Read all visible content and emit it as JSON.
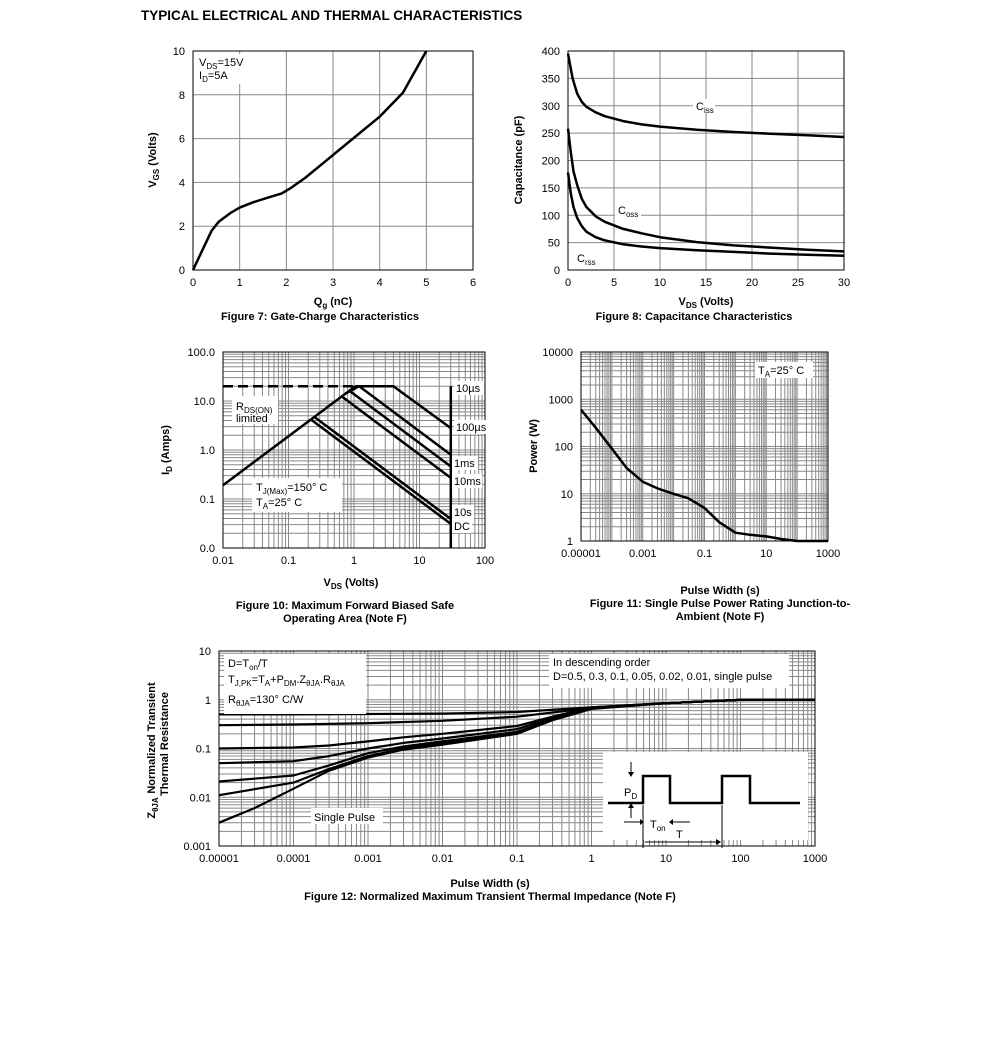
{
  "page": {
    "header": "TYPICAL ELECTRICAL AND THERMAL CHARACTERISTICS"
  },
  "chart_data": [
    {
      "id": "fig7",
      "type": "line",
      "caption": "Figure 7: Gate-Charge Characteristics",
      "xlabel": "Q",
      "xlabel_sub": "g",
      "xlabel_tail": " (nC)",
      "ylabel": "V",
      "ylabel_sub": "GS",
      "ylabel_tail": " (Volts)",
      "xlim": [
        0,
        6
      ],
      "ylim": [
        0,
        10
      ],
      "xticks": [
        0,
        1,
        2,
        3,
        4,
        5,
        6
      ],
      "xtick_labels": [
        "0",
        "1",
        "2",
        "3",
        "4",
        "5",
        "6"
      ],
      "yticks": [
        0,
        2,
        4,
        6,
        8,
        10
      ],
      "ytick_labels": [
        "0",
        "2",
        "4",
        "6",
        "8",
        "10"
      ],
      "annotations": [
        {
          "id": "vds",
          "parts": [
            [
              "V",
              ""
            ],
            [
              "DS",
              "sub"
            ],
            [
              "=15V",
              ""
            ]
          ]
        },
        {
          "id": "id",
          "parts": [
            [
              "I",
              ""
            ],
            [
              "D",
              "sub"
            ],
            [
              "=5A",
              ""
            ]
          ]
        }
      ],
      "series": [
        {
          "x": [
            0,
            0.2,
            0.4,
            0.55,
            0.8,
            1.0,
            1.3,
            1.6,
            1.9,
            2.1,
            2.4,
            2.8,
            3.2,
            3.6,
            4.0,
            4.5,
            5.0
          ],
          "y": [
            0,
            0.9,
            1.8,
            2.2,
            2.6,
            2.85,
            3.1,
            3.3,
            3.5,
            3.75,
            4.2,
            4.9,
            5.6,
            6.3,
            7.0,
            8.1,
            10.0
          ]
        }
      ]
    },
    {
      "id": "fig8",
      "type": "line",
      "caption": "Figure 8: Capacitance Characteristics",
      "xlabel": "V",
      "xlabel_sub": "DS",
      "xlabel_tail": " (Volts)",
      "ylabel": "Capacitance (pF)",
      "xlim": [
        0,
        30
      ],
      "ylim": [
        0,
        400
      ],
      "xticks": [
        0,
        5,
        10,
        15,
        20,
        25,
        30
      ],
      "xtick_labels": [
        "0",
        "5",
        "10",
        "15",
        "20",
        "25",
        "30"
      ],
      "yticks": [
        0,
        50,
        100,
        150,
        200,
        250,
        300,
        350,
        400
      ],
      "ytick_labels": [
        "0",
        "50",
        "100",
        "150",
        "200",
        "250",
        "300",
        "350",
        "400"
      ],
      "series": [
        {
          "name": "Ciss",
          "label": [
            "C",
            "iss"
          ],
          "x": [
            0,
            0.5,
            1,
            1.5,
            2,
            3,
            4,
            6,
            8,
            10,
            14,
            18,
            22,
            26,
            30
          ],
          "y": [
            395,
            350,
            322,
            307,
            298,
            288,
            281,
            272,
            266,
            262,
            256,
            252,
            249,
            246,
            243
          ]
        },
        {
          "name": "Coss",
          "label": [
            "C",
            "oss"
          ],
          "x": [
            0,
            0.3,
            0.6,
            1,
            1.5,
            2,
            3,
            4,
            6,
            8,
            10,
            14,
            18,
            22,
            26,
            30
          ],
          "y": [
            258,
            215,
            180,
            155,
            130,
            115,
            98,
            88,
            75,
            67,
            60,
            51,
            45,
            41,
            37,
            34
          ]
        },
        {
          "name": "Crss",
          "label": [
            "C",
            "rss"
          ],
          "x": [
            0,
            0.3,
            0.6,
            1,
            1.5,
            2,
            3,
            4,
            6,
            8,
            10,
            14,
            18,
            22,
            26,
            30
          ],
          "y": [
            178,
            140,
            115,
            95,
            80,
            70,
            60,
            54,
            47,
            43,
            40,
            36,
            33,
            30,
            28,
            26
          ]
        }
      ]
    },
    {
      "id": "fig10",
      "type": "line",
      "caption": "Figure 10: Maximum Forward Biased Safe",
      "caption2": "Operating Area (Note F)",
      "xlabel": "V",
      "xlabel_sub": "DS",
      "xlabel_tail": " (Volts)",
      "ylabel": "I",
      "ylabel_sub": "D",
      "ylabel_tail": " (Amps)",
      "xscale": "log",
      "yscale": "log",
      "xlim": [
        0.01,
        100
      ],
      "ylim": [
        0.01,
        100
      ],
      "xticks": [
        0.01,
        0.1,
        1,
        10,
        100
      ],
      "xtick_labels": [
        "0.01",
        "0.1",
        "1",
        "10",
        "100"
      ],
      "yticks": [
        0.01,
        0.1,
        1,
        10,
        100
      ],
      "ytick_labels": [
        "0.0",
        "0.1",
        "1.0",
        "10.0",
        "100.0"
      ],
      "annotations": [
        {
          "id": "rds",
          "parts": [
            [
              "R",
              ""
            ],
            [
              "DS(ON)",
              "sub"
            ]
          ],
          "line2": "limited"
        },
        {
          "id": "tj",
          "parts": [
            [
              "T",
              ""
            ],
            [
              "J(Max)",
              "sub"
            ],
            [
              "=150° C",
              ""
            ]
          ]
        },
        {
          "id": "ta",
          "parts": [
            [
              "T",
              ""
            ],
            [
              "A",
              "sub"
            ],
            [
              "=25° C",
              ""
            ]
          ]
        },
        {
          "id": "l10us",
          "parts": [
            [
              "10µs",
              ""
            ]
          ]
        },
        {
          "id": "l100us",
          "parts": [
            [
              "100µs",
              ""
            ]
          ]
        },
        {
          "id": "l1ms",
          "parts": [
            [
              "1ms",
              ""
            ]
          ]
        },
        {
          "id": "l10ms",
          "parts": [
            [
              "10ms",
              ""
            ]
          ]
        },
        {
          "id": "l10s",
          "parts": [
            [
              "10s",
              ""
            ]
          ]
        },
        {
          "id": "ldc",
          "parts": [
            [
              "DC",
              ""
            ]
          ]
        }
      ],
      "series": [
        {
          "name": "RDS(ON) limited",
          "dashed": true,
          "x": [
            0.01,
            1.05
          ],
          "y": [
            20,
            20
          ]
        },
        {
          "name": "RDS(ON) limit",
          "x": [
            0.01,
            1.05
          ],
          "y": [
            0.19,
            20
          ]
        },
        {
          "name": "10µs",
          "x": [
            1.05,
            4,
            30,
            30
          ],
          "y": [
            20,
            20,
            2.8,
            2.8
          ]
        },
        {
          "name": "100µs",
          "x": [
            0.75,
            1.2,
            30
          ],
          "y": [
            14.3,
            20,
            0.8
          ]
        },
        {
          "name": "1ms",
          "x": [
            0.65,
            30
          ],
          "y": [
            12.4,
            0.27
          ]
        },
        {
          "name": "10ms",
          "x": [
            0.85,
            30
          ],
          "y": [
            16.2,
            0.46
          ]
        },
        {
          "name": "10s",
          "x": [
            0.22,
            30
          ],
          "y": [
            4.2,
            0.031
          ]
        },
        {
          "name": "DC",
          "x": [
            0.25,
            30
          ],
          "y": [
            4.7,
            0.039
          ]
        },
        {
          "name": "VDS max",
          "x": [
            30,
            30
          ],
          "y": [
            20,
            0.01
          ]
        }
      ]
    },
    {
      "id": "fig11",
      "type": "line",
      "caption": "Figure 11: Single Pulse Power Rating Junction-to-",
      "caption2": "Ambient (Note F)",
      "xlabel": "Pulse Width (s)",
      "ylabel": "Power (W)",
      "xscale": "log",
      "yscale": "log",
      "xlim": [
        1e-05,
        1000
      ],
      "ylim": [
        1,
        10000
      ],
      "xticks": [
        1e-05,
        0.001,
        0.1,
        10,
        1000
      ],
      "xtick_labels": [
        "0.00001",
        "0.001",
        "0.1",
        "10",
        "1000"
      ],
      "yticks": [
        1,
        10,
        100,
        1000,
        10000
      ],
      "ytick_labels": [
        "1",
        "10",
        "100",
        "1000",
        "10000"
      ],
      "annotations": [
        {
          "id": "ta",
          "parts": [
            [
              "T",
              ""
            ],
            [
              "A",
              "sub"
            ],
            [
              "=25° C",
              ""
            ]
          ]
        }
      ],
      "series": [
        {
          "x": [
            1e-05,
            3e-05,
            0.0001,
            0.0003,
            0.001,
            0.003,
            0.01,
            0.03,
            0.1,
            0.3,
            1,
            3,
            10,
            30,
            100,
            300,
            1000
          ],
          "y": [
            600,
            250,
            90,
            35,
            18,
            13,
            10,
            8,
            5,
            2.5,
            1.5,
            1.35,
            1.25,
            1.1,
            1.0,
            1.0,
            1.0
          ]
        }
      ]
    },
    {
      "id": "fig12",
      "type": "line",
      "caption": "Figure 12: Normalized Maximum Transient Thermal Impedance (Note F)",
      "xlabel": "Pulse Width (s)",
      "ylabel": "Normalized Transient",
      "ylabel2": "Thermal Resistance",
      "ylabel_prefix": [
        "Z",
        "θJA"
      ],
      "xscale": "log",
      "yscale": "log",
      "xlim": [
        1e-05,
        1000
      ],
      "ylim": [
        0.001,
        10
      ],
      "xticks": [
        1e-05,
        0.0001,
        0.001,
        0.01,
        0.1,
        1,
        10,
        100,
        1000
      ],
      "xtick_labels": [
        "0.00001",
        "0.0001",
        "0.001",
        "0.01",
        "0.1",
        "1",
        "10",
        "100",
        "1000"
      ],
      "yticks": [
        0.001,
        0.01,
        0.1,
        1,
        10
      ],
      "ytick_labels": [
        "0.001",
        "0.01",
        "0.1",
        "1",
        "10"
      ],
      "annotations": [
        {
          "id": "d",
          "parts": [
            [
              "D=T",
              ""
            ],
            [
              "on",
              "sub"
            ],
            [
              "/T",
              ""
            ]
          ]
        },
        {
          "id": "tjpk",
          "parts": [
            [
              "T",
              ""
            ],
            [
              "J,PK",
              "sub"
            ],
            [
              "=T",
              ""
            ],
            [
              "A",
              "sub"
            ],
            [
              "+P",
              ""
            ],
            [
              "DM",
              "sub"
            ],
            [
              ".Z",
              ""
            ],
            [
              "θJA",
              "sub"
            ],
            [
              ".R",
              ""
            ],
            [
              "θJA",
              "sub"
            ]
          ]
        },
        {
          "id": "rth",
          "parts": [
            [
              "R",
              ""
            ],
            [
              "θJA",
              "sub"
            ],
            [
              "=130° C/W",
              ""
            ]
          ]
        },
        {
          "id": "order1",
          "parts": [
            [
              "In descending order",
              ""
            ]
          ]
        },
        {
          "id": "order2",
          "parts": [
            [
              "D=0.5, 0.3, 0.1, 0.05, 0.02, 0.01, single pulse",
              ""
            ]
          ]
        },
        {
          "id": "single",
          "parts": [
            [
              "Single Pulse",
              ""
            ]
          ]
        },
        {
          "id": "pd",
          "parts": [
            [
              "P",
              ""
            ],
            [
              "D",
              "sub"
            ]
          ]
        },
        {
          "id": "ton",
          "parts": [
            [
              "T",
              ""
            ],
            [
              "on",
              "sub"
            ]
          ]
        },
        {
          "id": "tt",
          "parts": [
            [
              "T",
              ""
            ]
          ]
        }
      ],
      "series": [
        {
          "name": "D=0.5",
          "x": [
            1e-05,
            0.0001,
            0.001,
            0.01,
            0.1,
            1,
            10,
            100,
            1000
          ],
          "y": [
            0.5,
            0.5,
            0.51,
            0.52,
            0.56,
            0.7,
            0.85,
            1.0,
            1.0
          ]
        },
        {
          "name": "D=0.3",
          "x": [
            1e-05,
            0.0001,
            0.001,
            0.01,
            0.1,
            1,
            10,
            100,
            1000
          ],
          "y": [
            0.3,
            0.31,
            0.33,
            0.37,
            0.45,
            0.68,
            0.85,
            1.0,
            1.0
          ]
        },
        {
          "name": "D=0.1",
          "x": [
            1e-05,
            0.0001,
            0.0003,
            0.001,
            0.003,
            0.01,
            0.1,
            0.3,
            1,
            10,
            100,
            1000
          ],
          "y": [
            0.1,
            0.105,
            0.115,
            0.14,
            0.17,
            0.2,
            0.29,
            0.45,
            0.7,
            0.85,
            1.0,
            1.0
          ]
        },
        {
          "name": "D=0.05",
          "x": [
            1e-05,
            0.0001,
            0.0003,
            0.001,
            0.003,
            0.01,
            0.1,
            0.3,
            1,
            10,
            100,
            1000
          ],
          "y": [
            0.05,
            0.055,
            0.07,
            0.1,
            0.13,
            0.16,
            0.25,
            0.42,
            0.68,
            0.85,
            1.0,
            1.0
          ]
        },
        {
          "name": "D=0.02",
          "x": [
            1e-05,
            0.0001,
            0.0003,
            0.001,
            0.003,
            0.01,
            0.1,
            0.3,
            1,
            10,
            100,
            1000
          ],
          "y": [
            0.021,
            0.028,
            0.045,
            0.08,
            0.11,
            0.14,
            0.22,
            0.4,
            0.67,
            0.85,
            1.0,
            1.0
          ]
        },
        {
          "name": "D=0.01",
          "x": [
            1e-05,
            0.0001,
            0.0003,
            0.001,
            0.003,
            0.01,
            0.1,
            0.3,
            1,
            10,
            100,
            1000
          ],
          "y": [
            0.011,
            0.02,
            0.038,
            0.07,
            0.1,
            0.13,
            0.21,
            0.39,
            0.66,
            0.85,
            1.0,
            1.0
          ]
        },
        {
          "name": "single pulse",
          "x": [
            1e-05,
            3e-05,
            0.0001,
            0.0003,
            0.001,
            0.003,
            0.01,
            0.1,
            0.3,
            1,
            10,
            100,
            1000
          ],
          "y": [
            0.003,
            0.006,
            0.015,
            0.035,
            0.065,
            0.095,
            0.12,
            0.2,
            0.38,
            0.65,
            0.85,
            1.0,
            1.0
          ]
        }
      ]
    }
  ]
}
